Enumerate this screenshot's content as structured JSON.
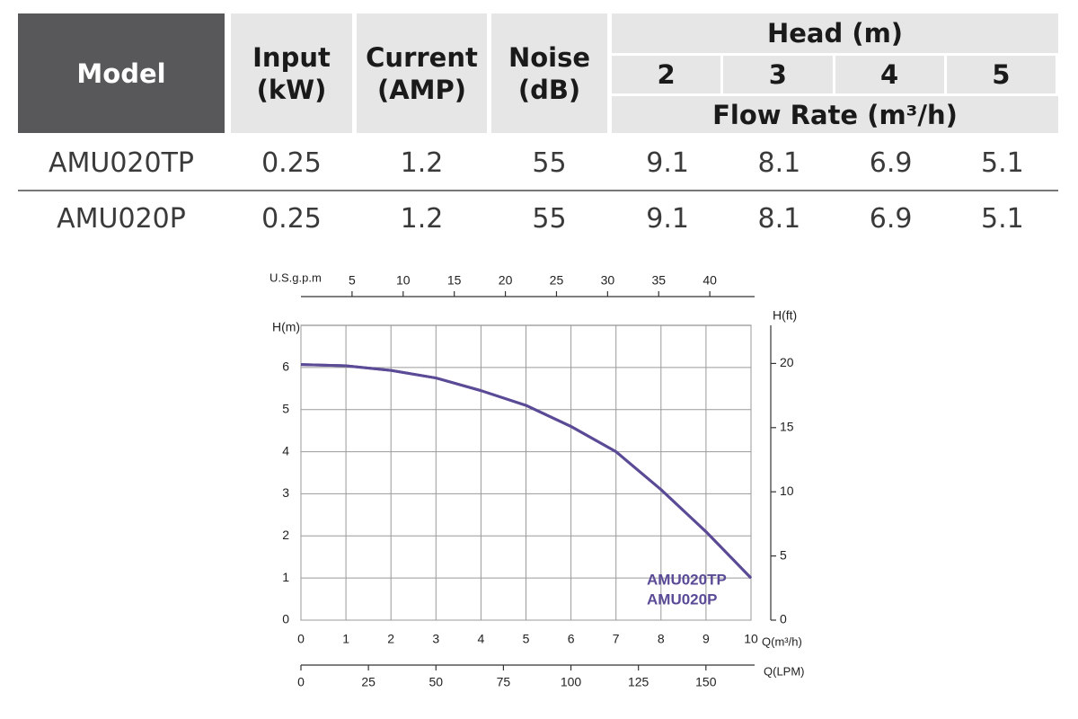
{
  "table": {
    "header": {
      "model": "Model",
      "input": "Input (kW)",
      "current": "Current (AMP)",
      "noise": "Noise (dB)",
      "head": "Head (m)",
      "head_values": [
        2,
        3,
        4,
        5
      ],
      "flow_rate": "Flow Rate (m³/h)"
    },
    "rows": [
      [
        "AMU020TP",
        0.25,
        1.2,
        55,
        9.1,
        8.1,
        6.9,
        5.1
      ],
      [
        "AMU020P",
        0.25,
        1.2,
        55,
        9.1,
        8.1,
        6.9,
        5.1
      ]
    ]
  },
  "chart_data": {
    "type": "line",
    "x_label": "Q(m³/h)",
    "y_label": "H(m)",
    "y2_label": "H(ft)",
    "x": [
      0,
      1,
      2,
      3,
      4,
      5,
      6,
      7,
      8,
      9,
      10
    ],
    "series": [
      {
        "name": "AMU020TP",
        "color": "#5b4a96",
        "values": [
          6.07,
          6.04,
          5.93,
          5.75,
          5.45,
          5.1,
          4.6,
          4.0,
          3.1,
          2.1,
          1.0
        ]
      },
      {
        "name": "AMU020P",
        "color": "#5b4a96",
        "values": [
          6.07,
          6.04,
          5.93,
          5.75,
          5.45,
          5.1,
          4.6,
          4.0,
          3.1,
          2.1,
          1.0
        ]
      }
    ],
    "xlim": [
      0,
      10
    ],
    "xticks": [
      0,
      1,
      2,
      3,
      4,
      5,
      6,
      7,
      8,
      9,
      10
    ],
    "ylim": [
      0,
      7
    ],
    "yticks": [
      0,
      1,
      2,
      3,
      4,
      5,
      6
    ],
    "y2lim": [
      0,
      22.97
    ],
    "y2ticks": [
      0,
      5,
      10,
      15,
      20
    ],
    "top_axis": {
      "label": "U.S.g.p.m",
      "lim": [
        0,
        44.03
      ],
      "ticks": [
        5,
        10,
        15,
        20,
        25,
        30,
        35,
        40
      ]
    },
    "bottom_axis_2": {
      "label": "Q(LPM)",
      "lim": [
        0,
        166.7
      ],
      "ticks": [
        0,
        25,
        50,
        75,
        100,
        125,
        150
      ]
    },
    "grid": true,
    "legend_position": "lower right"
  }
}
